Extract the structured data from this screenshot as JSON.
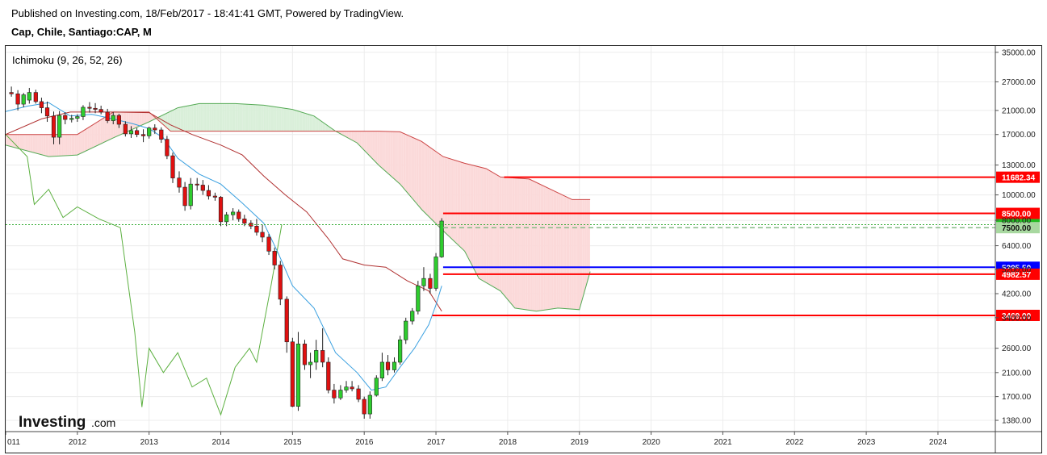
{
  "header": {
    "published": "Published on Investing.com, 18/Feb/2017 - 18:41:41 GMT, Powered by TradingView.",
    "symbol": "Cap, Chile, Santiago:CAP, M"
  },
  "indicator_label": "Ichimoku (9, 26, 52, 26)",
  "logo": {
    "main": "Investing",
    "suffix": ".com"
  },
  "colors": {
    "up_candle": "#2ecc2e",
    "down_candle": "#e01010",
    "tenkan": "#3aa0e0",
    "kijun": "#b03030",
    "chikou": "#5cb040",
    "cloud_bull": "#d9efd9",
    "cloud_bear": "#fbd9d9",
    "span_a": "#55aa55",
    "span_b": "#cc4444",
    "level_red": "#ff0000",
    "level_blue": "#0000ff",
    "current_price": "#33aa33"
  },
  "chart_data": {
    "type": "candlestick",
    "title": "Cap, Chile, Santiago:CAP, M",
    "log_scale": true,
    "grid": true,
    "x_ticks": [
      "011",
      "2012",
      "2013",
      "2014",
      "2015",
      "2016",
      "2017",
      "2018",
      "2019",
      "2020",
      "2021",
      "2022",
      "2023",
      "2024"
    ],
    "y_ticks": [
      35000,
      27000,
      21000,
      17000,
      13000,
      10000,
      8000,
      6400,
      5200,
      4200,
      3400,
      2600,
      2100,
      1700,
      1380
    ],
    "ylim": [
      1250,
      37000
    ],
    "xlim": [
      2011.0,
      2024.8
    ],
    "candles": [
      {
        "t": 2011.08,
        "o": 24600,
        "h": 25900,
        "l": 23700,
        "c": 24300
      },
      {
        "t": 2011.17,
        "o": 24300,
        "h": 25100,
        "l": 21000,
        "c": 22200
      },
      {
        "t": 2011.25,
        "o": 22200,
        "h": 24500,
        "l": 21600,
        "c": 24100
      },
      {
        "t": 2011.33,
        "o": 23000,
        "h": 25600,
        "l": 22300,
        "c": 24600
      },
      {
        "t": 2011.42,
        "o": 24600,
        "h": 25200,
        "l": 22300,
        "c": 22700
      },
      {
        "t": 2011.5,
        "o": 22700,
        "h": 23500,
        "l": 20500,
        "c": 21500
      },
      {
        "t": 2011.58,
        "o": 21500,
        "h": 22700,
        "l": 19000,
        "c": 20000
      },
      {
        "t": 2011.67,
        "o": 20000,
        "h": 20800,
        "l": 15600,
        "c": 16600
      },
      {
        "t": 2011.75,
        "o": 16600,
        "h": 20900,
        "l": 15600,
        "c": 20100
      },
      {
        "t": 2011.83,
        "o": 20100,
        "h": 20700,
        "l": 18600,
        "c": 19400
      },
      {
        "t": 2011.92,
        "o": 19400,
        "h": 20200,
        "l": 18900,
        "c": 19600
      },
      {
        "t": 2012.0,
        "o": 19600,
        "h": 20300,
        "l": 19000,
        "c": 19900
      },
      {
        "t": 2012.08,
        "o": 19900,
        "h": 22000,
        "l": 19300,
        "c": 21600
      },
      {
        "t": 2012.17,
        "o": 21600,
        "h": 22600,
        "l": 20600,
        "c": 21400
      },
      {
        "t": 2012.25,
        "o": 21400,
        "h": 22400,
        "l": 20500,
        "c": 21200
      },
      {
        "t": 2012.33,
        "o": 21200,
        "h": 21900,
        "l": 20300,
        "c": 20700
      },
      {
        "t": 2012.42,
        "o": 20700,
        "h": 21300,
        "l": 18800,
        "c": 19200
      },
      {
        "t": 2012.5,
        "o": 19200,
        "h": 20700,
        "l": 18600,
        "c": 20100
      },
      {
        "t": 2012.58,
        "o": 20100,
        "h": 20400,
        "l": 18000,
        "c": 18600
      },
      {
        "t": 2012.67,
        "o": 18600,
        "h": 19100,
        "l": 16700,
        "c": 17100
      },
      {
        "t": 2012.75,
        "o": 17100,
        "h": 18300,
        "l": 16500,
        "c": 17600
      },
      {
        "t": 2012.83,
        "o": 17600,
        "h": 18000,
        "l": 16600,
        "c": 17000
      },
      {
        "t": 2012.92,
        "o": 17000,
        "h": 17800,
        "l": 15900,
        "c": 16800
      },
      {
        "t": 2013.0,
        "o": 16800,
        "h": 18200,
        "l": 16400,
        "c": 18000
      },
      {
        "t": 2013.08,
        "o": 18000,
        "h": 18600,
        "l": 17100,
        "c": 17700
      },
      {
        "t": 2013.17,
        "o": 17700,
        "h": 18100,
        "l": 15800,
        "c": 16300
      },
      {
        "t": 2013.25,
        "o": 16300,
        "h": 16800,
        "l": 13700,
        "c": 14100
      },
      {
        "t": 2013.33,
        "o": 14100,
        "h": 14500,
        "l": 11100,
        "c": 11600
      },
      {
        "t": 2013.42,
        "o": 11600,
        "h": 12300,
        "l": 10200,
        "c": 10700
      },
      {
        "t": 2013.5,
        "o": 10700,
        "h": 11200,
        "l": 8700,
        "c": 9100
      },
      {
        "t": 2013.58,
        "o": 9100,
        "h": 11600,
        "l": 8800,
        "c": 11000
      },
      {
        "t": 2013.67,
        "o": 11000,
        "h": 11600,
        "l": 10400,
        "c": 10900
      },
      {
        "t": 2013.75,
        "o": 10900,
        "h": 11400,
        "l": 10000,
        "c": 10400
      },
      {
        "t": 2013.83,
        "o": 10400,
        "h": 10900,
        "l": 9600,
        "c": 9900
      },
      {
        "t": 2013.92,
        "o": 9900,
        "h": 10200,
        "l": 9500,
        "c": 9800
      },
      {
        "t": 2014.0,
        "o": 9800,
        "h": 9900,
        "l": 7600,
        "c": 7900
      },
      {
        "t": 2014.08,
        "o": 7900,
        "h": 8600,
        "l": 7600,
        "c": 8400
      },
      {
        "t": 2014.17,
        "o": 8400,
        "h": 8900,
        "l": 8000,
        "c": 8600
      },
      {
        "t": 2014.25,
        "o": 8600,
        "h": 8800,
        "l": 7900,
        "c": 8100
      },
      {
        "t": 2014.33,
        "o": 8100,
        "h": 8400,
        "l": 7600,
        "c": 7800
      },
      {
        "t": 2014.42,
        "o": 7800,
        "h": 8000,
        "l": 7400,
        "c": 7600
      },
      {
        "t": 2014.5,
        "o": 7600,
        "h": 8100,
        "l": 7000,
        "c": 7200
      },
      {
        "t": 2014.58,
        "o": 7200,
        "h": 7700,
        "l": 6600,
        "c": 6900
      },
      {
        "t": 2014.67,
        "o": 6900,
        "h": 7100,
        "l": 5900,
        "c": 6100
      },
      {
        "t": 2014.75,
        "o": 6100,
        "h": 6300,
        "l": 5200,
        "c": 5400
      },
      {
        "t": 2014.83,
        "o": 5400,
        "h": 5600,
        "l": 3800,
        "c": 4000
      },
      {
        "t": 2014.92,
        "o": 4000,
        "h": 4100,
        "l": 2500,
        "c": 2750
      },
      {
        "t": 2015.0,
        "o": 2750,
        "h": 2850,
        "l": 1550,
        "c": 1560
      },
      {
        "t": 2015.08,
        "o": 1560,
        "h": 3000,
        "l": 1500,
        "c": 2700
      },
      {
        "t": 2015.17,
        "o": 2700,
        "h": 2800,
        "l": 2150,
        "c": 2250
      },
      {
        "t": 2015.25,
        "o": 2250,
        "h": 2500,
        "l": 2000,
        "c": 2300
      },
      {
        "t": 2015.33,
        "o": 2300,
        "h": 2800,
        "l": 2150,
        "c": 2550
      },
      {
        "t": 2015.42,
        "o": 2550,
        "h": 3100,
        "l": 2200,
        "c": 2300
      },
      {
        "t": 2015.5,
        "o": 2300,
        "h": 2400,
        "l": 1750,
        "c": 1800
      },
      {
        "t": 2015.58,
        "o": 1800,
        "h": 1900,
        "l": 1600,
        "c": 1680
      },
      {
        "t": 2015.67,
        "o": 1680,
        "h": 1880,
        "l": 1650,
        "c": 1800
      },
      {
        "t": 2015.75,
        "o": 1800,
        "h": 1950,
        "l": 1760,
        "c": 1850
      },
      {
        "t": 2015.83,
        "o": 1850,
        "h": 1950,
        "l": 1780,
        "c": 1820
      },
      {
        "t": 2015.92,
        "o": 1820,
        "h": 1880,
        "l": 1620,
        "c": 1660
      },
      {
        "t": 2016.0,
        "o": 1660,
        "h": 1700,
        "l": 1400,
        "c": 1460
      },
      {
        "t": 2016.08,
        "o": 1460,
        "h": 1780,
        "l": 1400,
        "c": 1720
      },
      {
        "t": 2016.17,
        "o": 1720,
        "h": 2050,
        "l": 1700,
        "c": 2000
      },
      {
        "t": 2016.25,
        "o": 2000,
        "h": 2500,
        "l": 1950,
        "c": 2300
      },
      {
        "t": 2016.33,
        "o": 2300,
        "h": 2450,
        "l": 2050,
        "c": 2150
      },
      {
        "t": 2016.42,
        "o": 2150,
        "h": 2400,
        "l": 2100,
        "c": 2300
      },
      {
        "t": 2016.5,
        "o": 2300,
        "h": 2900,
        "l": 2250,
        "c": 2800
      },
      {
        "t": 2016.58,
        "o": 2800,
        "h": 3400,
        "l": 2700,
        "c": 3300
      },
      {
        "t": 2016.67,
        "o": 3300,
        "h": 3700,
        "l": 3200,
        "c": 3600
      },
      {
        "t": 2016.75,
        "o": 3600,
        "h": 4700,
        "l": 3500,
        "c": 4500
      },
      {
        "t": 2016.83,
        "o": 4500,
        "h": 5300,
        "l": 4300,
        "c": 4800
      },
      {
        "t": 2016.92,
        "o": 4800,
        "h": 5000,
        "l": 4200,
        "c": 4400
      },
      {
        "t": 2017.0,
        "o": 4400,
        "h": 6000,
        "l": 4300,
        "c": 5800
      },
      {
        "t": 2017.08,
        "o": 5800,
        "h": 8150,
        "l": 5750,
        "c": 7950
      }
    ],
    "tenkan_sen": [
      [
        2011.0,
        20800
      ],
      [
        2011.3,
        21800
      ],
      [
        2011.6,
        22500
      ],
      [
        2011.9,
        20000
      ],
      [
        2012.2,
        20300
      ],
      [
        2012.5,
        19500
      ],
      [
        2012.8,
        18600
      ],
      [
        2013.0,
        17900
      ],
      [
        2013.2,
        16500
      ],
      [
        2013.4,
        13800
      ],
      [
        2013.7,
        12000
      ],
      [
        2014.0,
        11000
      ],
      [
        2014.3,
        9300
      ],
      [
        2014.6,
        7800
      ],
      [
        2014.8,
        6000
      ],
      [
        2015.0,
        4500
      ],
      [
        2015.3,
        3700
      ],
      [
        2015.6,
        2500
      ],
      [
        2015.9,
        2100
      ],
      [
        2016.1,
        1800
      ],
      [
        2016.3,
        1850
      ],
      [
        2016.5,
        2200
      ],
      [
        2016.7,
        2600
      ],
      [
        2016.9,
        3200
      ],
      [
        2017.0,
        3800
      ],
      [
        2017.08,
        4500
      ]
    ],
    "kijun_sen": [
      [
        2011.0,
        17000
      ],
      [
        2011.5,
        19500
      ],
      [
        2011.9,
        20700
      ],
      [
        2012.5,
        20700
      ],
      [
        2013.0,
        20600
      ],
      [
        2013.3,
        18500
      ],
      [
        2013.6,
        17000
      ],
      [
        2014.0,
        15500
      ],
      [
        2014.3,
        14200
      ],
      [
        2014.6,
        11800
      ],
      [
        2014.9,
        10000
      ],
      [
        2015.2,
        8600
      ],
      [
        2015.5,
        6800
      ],
      [
        2015.7,
        5700
      ],
      [
        2016.0,
        5400
      ],
      [
        2016.3,
        5300
      ],
      [
        2016.6,
        4700
      ],
      [
        2016.9,
        4300
      ],
      [
        2017.0,
        3900
      ],
      [
        2017.08,
        3600
      ]
    ],
    "senkou_span_a": [
      [
        2011.0,
        15500
      ],
      [
        2011.6,
        14000
      ],
      [
        2012.0,
        14200
      ],
      [
        2012.5,
        16500
      ],
      [
        2013.0,
        19000
      ],
      [
        2013.4,
        21500
      ],
      [
        2013.7,
        22300
      ],
      [
        2014.2,
        22300
      ],
      [
        2014.6,
        22000
      ],
      [
        2015.0,
        21200
      ],
      [
        2015.3,
        20000
      ],
      [
        2015.6,
        17500
      ],
      [
        2015.9,
        15800
      ],
      [
        2016.2,
        13000
      ],
      [
        2016.5,
        11000
      ],
      [
        2016.8,
        8800
      ],
      [
        2017.1,
        7300
      ],
      [
        2017.4,
        6100
      ],
      [
        2017.6,
        4800
      ],
      [
        2017.9,
        4300
      ],
      [
        2018.1,
        3700
      ],
      [
        2018.4,
        3600
      ],
      [
        2018.7,
        3700
      ],
      [
        2019.0,
        3650
      ],
      [
        2019.15,
        5100
      ]
    ],
    "senkou_span_b": [
      [
        2011.0,
        17000
      ],
      [
        2012.0,
        17000
      ],
      [
        2012.5,
        20700
      ],
      [
        2013.0,
        20700
      ],
      [
        2013.3,
        17500
      ],
      [
        2014.0,
        17500
      ],
      [
        2015.0,
        17500
      ],
      [
        2015.6,
        17500
      ],
      [
        2015.9,
        17500
      ],
      [
        2016.2,
        17500
      ],
      [
        2016.5,
        17400
      ],
      [
        2016.8,
        16000
      ],
      [
        2017.1,
        14000
      ],
      [
        2017.4,
        13200
      ],
      [
        2017.7,
        12600
      ],
      [
        2017.9,
        11700
      ],
      [
        2018.3,
        11500
      ],
      [
        2018.6,
        10500
      ],
      [
        2018.9,
        9600
      ],
      [
        2019.15,
        9600
      ]
    ],
    "chikou_span": [
      [
        2011.0,
        17000
      ],
      [
        2011.3,
        14000
      ],
      [
        2011.4,
        9200
      ],
      [
        2011.6,
        10500
      ],
      [
        2011.8,
        8200
      ],
      [
        2012.0,
        9000
      ],
      [
        2012.3,
        8100
      ],
      [
        2012.6,
        7500
      ],
      [
        2012.8,
        3000
      ],
      [
        2012.9,
        1550
      ],
      [
        2013.0,
        2600
      ],
      [
        2013.2,
        2100
      ],
      [
        2013.4,
        2500
      ],
      [
        2013.6,
        1850
      ],
      [
        2013.8,
        2000
      ],
      [
        2014.0,
        1450
      ],
      [
        2014.2,
        2200
      ],
      [
        2014.4,
        2600
      ],
      [
        2014.5,
        2300
      ],
      [
        2014.7,
        4500
      ],
      [
        2014.85,
        7700
      ]
    ],
    "price_levels": [
      {
        "value": "11682.34",
        "v": 11682.34,
        "color": "red",
        "x_start": 2017.95
      },
      {
        "value": "8500.00",
        "v": 8500,
        "color": "red",
        "x_start": 2017.1
      },
      {
        "value": "7700.00",
        "v": 7700,
        "color": "green",
        "x_start": 2011.0
      },
      {
        "value": "7500.00",
        "v": 7500,
        "color": "gray",
        "x_start": 2017.1
      },
      {
        "value": "5295.50",
        "v": 5295.5,
        "color": "blue",
        "x_start": 2017.1
      },
      {
        "value": "4982.57",
        "v": 4982.57,
        "color": "red",
        "x_start": 2017.1
      },
      {
        "value": "3469.00",
        "v": 3469,
        "color": "red",
        "x_start": 2016.95
      }
    ]
  }
}
